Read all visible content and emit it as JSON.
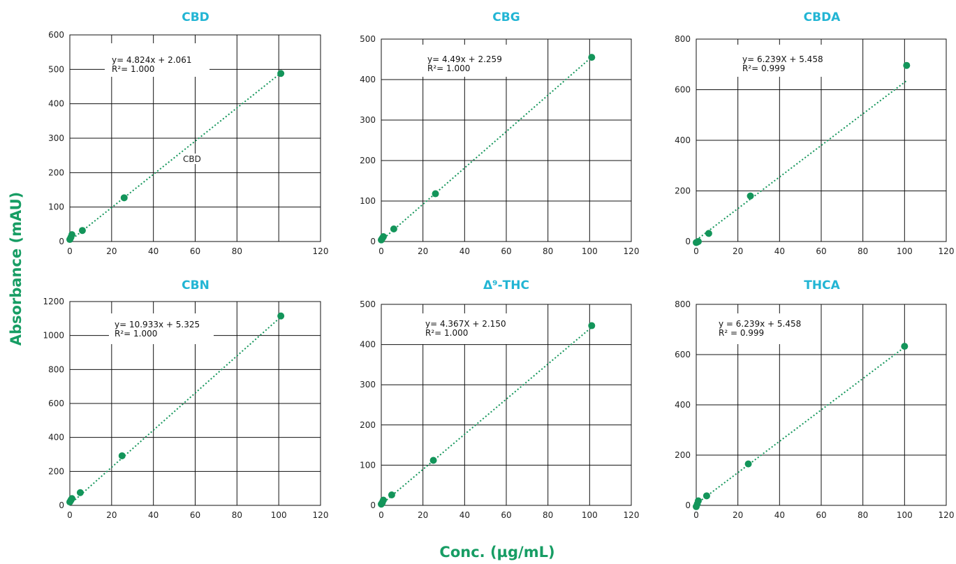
{
  "figure": {
    "ylabel": "Absorbance (mAU)",
    "xlabel": "Conc. (µg/mL)"
  },
  "colors": {
    "accent_title": "#22b5d4",
    "axis_label": "#179d64",
    "series": "#13955a",
    "grid": "#111111"
  },
  "chart_data": [
    {
      "type": "scatter",
      "title": "CBD",
      "equation": "y= 4.824x + 2.061",
      "r2": "R²= 1.000",
      "annotation": "CBD",
      "xlim": [
        0,
        120
      ],
      "ylim": [
        0,
        600
      ],
      "xticks": [
        0,
        20,
        40,
        60,
        80,
        120
      ],
      "yticks": [
        0,
        100,
        200,
        300,
        400,
        500,
        600
      ],
      "x": [
        0,
        0.5,
        1.0,
        6.0,
        26.0,
        101.0
      ],
      "y": [
        6,
        12,
        20,
        32,
        127,
        488
      ],
      "trendline": {
        "slope": 4.824,
        "intercept": 2.061
      }
    },
    {
      "type": "scatter",
      "title": "CBG",
      "equation": "y= 4.49x + 2.259",
      "r2": "R²= 1.000",
      "xlim": [
        0,
        120
      ],
      "ylim": [
        0,
        500
      ],
      "xticks": [
        0,
        20,
        40,
        60,
        80,
        100,
        120
      ],
      "yticks": [
        0,
        100,
        200,
        300,
        400,
        500
      ],
      "x": [
        0,
        0.5,
        1.0,
        6.0,
        26.0,
        101.0
      ],
      "y": [
        4,
        8,
        12,
        31,
        118,
        455
      ],
      "trendline": {
        "slope": 4.49,
        "intercept": 2.259
      }
    },
    {
      "type": "scatter",
      "title": "CBDA",
      "equation": "y= 6.239X + 5.458",
      "r2": "R²= 0.999",
      "xlim": [
        0,
        120
      ],
      "ylim": [
        0,
        800
      ],
      "xticks": [
        0,
        20,
        40,
        60,
        80,
        100,
        120
      ],
      "yticks": [
        0,
        200,
        400,
        600,
        800
      ],
      "x": [
        0,
        0.5,
        1.0,
        6.0,
        26.0,
        101.0
      ],
      "y": [
        -4,
        -2,
        0,
        32,
        180,
        696
      ],
      "trendline": {
        "slope": 6.239,
        "intercept": 5.458
      }
    },
    {
      "type": "scatter",
      "title": "CBN",
      "equation": "y= 10.933x + 5.325",
      "r2": "R²= 1.000",
      "xlim": [
        0,
        120
      ],
      "ylim": [
        0,
        1200
      ],
      "xticks": [
        0,
        20,
        40,
        60,
        80,
        100,
        120
      ],
      "yticks": [
        0,
        200,
        400,
        600,
        800,
        1000,
        1200
      ],
      "x": [
        0,
        0.5,
        1.0,
        5.0,
        25.0,
        101.0
      ],
      "y": [
        20,
        30,
        40,
        75,
        292,
        1115
      ],
      "trendline": {
        "slope": 10.933,
        "intercept": 5.325
      }
    },
    {
      "type": "scatter",
      "title": "Δ⁹-THC",
      "equation": "y= 4.367X + 2.150",
      "r2": "R²= 1.000",
      "xlim": [
        0,
        120
      ],
      "ylim": [
        0,
        500
      ],
      "xticks": [
        0,
        20,
        40,
        60,
        80,
        100,
        120
      ],
      "yticks": [
        0,
        100,
        200,
        300,
        400,
        500
      ],
      "x": [
        0,
        0.5,
        1.0,
        5.0,
        25.0,
        101.0
      ],
      "y": [
        3,
        7,
        13,
        26,
        112,
        447
      ],
      "trendline": {
        "slope": 4.367,
        "intercept": 2.15
      }
    },
    {
      "type": "scatter",
      "title": "THCA",
      "equation": "y = 6.239x + 5.458",
      "r2": "R² = 0.999",
      "xlim": [
        0,
        120
      ],
      "ylim": [
        0,
        800
      ],
      "xticks": [
        0,
        20,
        40,
        60,
        80,
        100,
        120
      ],
      "yticks": [
        0,
        200,
        400,
        600,
        800
      ],
      "x": [
        0,
        0.5,
        1.0,
        5.0,
        25.0,
        100.0
      ],
      "y": [
        -5,
        5,
        18,
        38,
        165,
        633
      ],
      "trendline": {
        "slope": 6.239,
        "intercept": 5.458
      }
    }
  ]
}
